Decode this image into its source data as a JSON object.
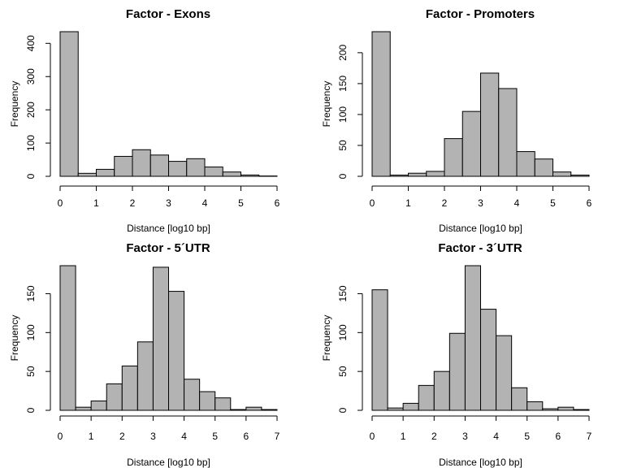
{
  "colors": {
    "bar_fill": "#b3b3b3",
    "bar_stroke": "#000000"
  },
  "chart_data": [
    {
      "type": "bar",
      "title": "Factor - Exons",
      "xlabel": "Distance [log10 bp]",
      "ylabel": "Frequency",
      "bin_edges": [
        0,
        0.5,
        1,
        1.5,
        2,
        2.5,
        3,
        3.5,
        4,
        4.5,
        5,
        5.5,
        6
      ],
      "values": [
        435,
        9,
        21,
        60,
        80,
        64,
        45,
        53,
        28,
        13,
        4,
        1
      ],
      "xlim": [
        0,
        6
      ],
      "xticks": [
        "0",
        "1",
        "2",
        "3",
        "4",
        "5",
        "6"
      ],
      "ylim": [
        0,
        435
      ],
      "yticks": [
        "0",
        "100",
        "200",
        "300",
        "400"
      ],
      "grid": false
    },
    {
      "type": "bar",
      "title": "Factor - Promoters",
      "xlabel": "Distance [log10 bp]",
      "ylabel": "Frequency",
      "bin_edges": [
        0,
        0.5,
        1,
        1.5,
        2,
        2.5,
        3,
        3.5,
        4,
        4.5,
        5,
        5.5,
        6
      ],
      "values": [
        234,
        2,
        5,
        8,
        61,
        105,
        167,
        142,
        40,
        28,
        7,
        2
      ],
      "xlim": [
        0,
        6
      ],
      "xticks": [
        "0",
        "1",
        "2",
        "3",
        "4",
        "5",
        "6"
      ],
      "ylim": [
        0,
        234
      ],
      "yticks": [
        "0",
        "50",
        "100",
        "150",
        "200"
      ],
      "grid": false
    },
    {
      "type": "bar",
      "title": "Factor - 5´UTR",
      "xlabel": "Distance [log10 bp]",
      "ylabel": "Frequency",
      "bin_edges": [
        0,
        0.5,
        1,
        1.5,
        2,
        2.5,
        3,
        3.5,
        4,
        4.5,
        5,
        5.5,
        6,
        6.5,
        7
      ],
      "values": [
        186,
        4,
        12,
        34,
        57,
        88,
        184,
        153,
        40,
        24,
        16,
        1,
        4,
        1
      ],
      "xlim": [
        0,
        7
      ],
      "xticks": [
        "0",
        "1",
        "2",
        "3",
        "4",
        "5",
        "6",
        "7"
      ],
      "ylim": [
        0,
        186
      ],
      "yticks": [
        "0",
        "50",
        "100",
        "150"
      ],
      "grid": false
    },
    {
      "type": "bar",
      "title": "Factor - 3´UTR",
      "xlabel": "Distance [log10 bp]",
      "ylabel": "Frequency",
      "bin_edges": [
        0,
        0.5,
        1,
        1.5,
        2,
        2.5,
        3,
        3.5,
        4,
        4.5,
        5,
        5.5,
        6,
        6.5,
        7
      ],
      "values": [
        155,
        3,
        9,
        32,
        50,
        99,
        186,
        130,
        96,
        29,
        11,
        2,
        4,
        1
      ],
      "xlim": [
        0,
        7
      ],
      "xticks": [
        "0",
        "1",
        "2",
        "3",
        "4",
        "5",
        "6",
        "7"
      ],
      "ylim": [
        0,
        186
      ],
      "yticks": [
        "0",
        "50",
        "100",
        "150"
      ],
      "grid": false
    }
  ]
}
